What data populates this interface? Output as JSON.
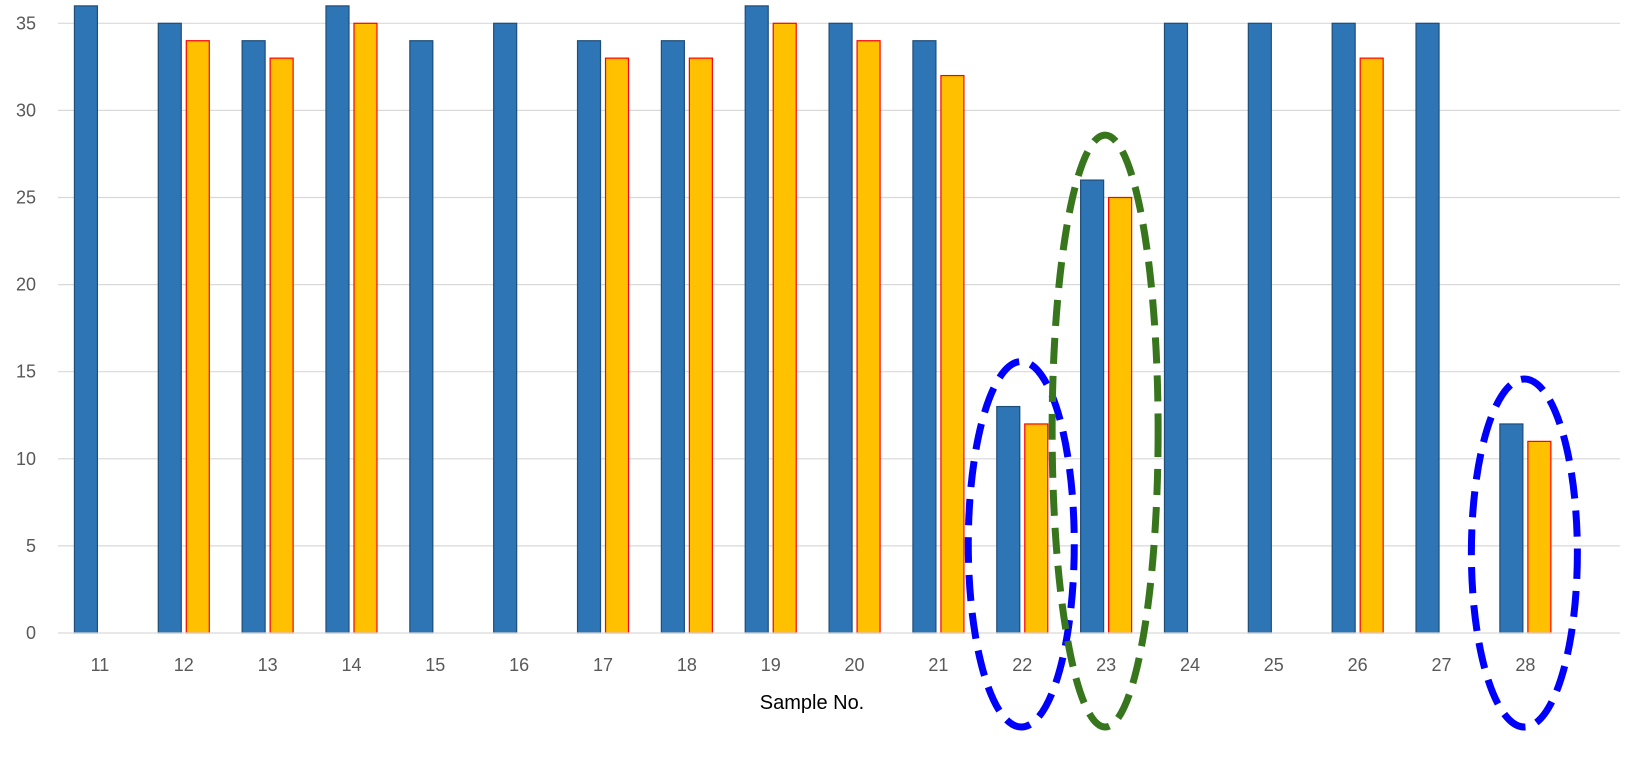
{
  "chart_data": {
    "type": "bar",
    "title": "",
    "xlabel": "Sample No.",
    "ylabel": "",
    "ylim": [
      0,
      36
    ],
    "yticks": [
      0,
      5,
      10,
      15,
      20,
      25,
      30,
      35
    ],
    "grid": true,
    "legend": "none",
    "categories": [
      "11",
      "12",
      "13",
      "14",
      "15",
      "16",
      "17",
      "18",
      "19",
      "20",
      "21",
      "22",
      "23",
      "24",
      "25",
      "26",
      "27",
      "28"
    ],
    "series": [
      {
        "color": "#2E75B6",
        "edge_color": "#1F4E79",
        "values": [
          36,
          35,
          34,
          36,
          34,
          35,
          34,
          34,
          36,
          35,
          34,
          13,
          26,
          35,
          35,
          35,
          35,
          12
        ]
      },
      {
        "color": "#FFC000",
        "edge_color": "#FF0000",
        "values": [
          null,
          34,
          33,
          35,
          null,
          null,
          33,
          33,
          35,
          34,
          32,
          12,
          25,
          null,
          null,
          33,
          null,
          11
        ]
      }
    ],
    "highlights": [
      {
        "category": "22",
        "color": "#0000FF",
        "style": "dashed-ellipse"
      },
      {
        "category": "23",
        "color": "#38761D",
        "style": "dashed-ellipse"
      },
      {
        "category": "28",
        "color": "#0000FF",
        "style": "dashed-ellipse"
      }
    ]
  }
}
